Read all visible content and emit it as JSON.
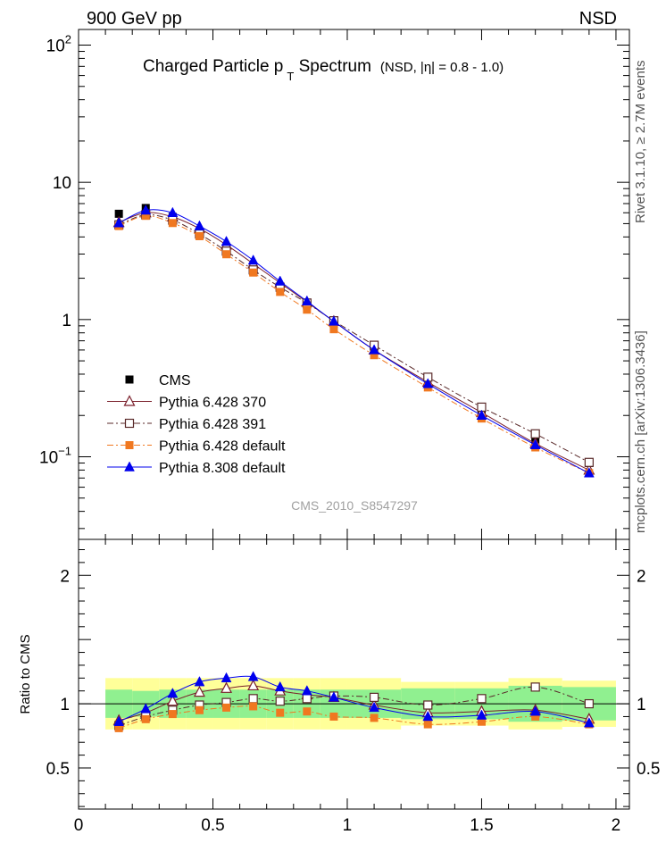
{
  "header": {
    "left": "900 GeV pp",
    "right": "NSD"
  },
  "side_labels": {
    "rivet": "Rivet 3.1.10, ≥ 2.7M events",
    "mcplots": "mcplots.cern.ch [arXiv:1306.3436]"
  },
  "chart_data": [
    {
      "type": "scatter",
      "panel": "main",
      "title_main": "Charged Particle p",
      "title_sub": "T",
      "title_rest": " Spectrum",
      "title_note": "(NSD, |η| = 0.8 - 1.0)",
      "watermark": "CMS_2010_S8547297",
      "xlim": [
        0,
        2.05
      ],
      "ylim": [
        0.025,
        130
      ],
      "yscale": "log",
      "yticks": [
        {
          "v": 100,
          "base": "10",
          "exp": "2"
        },
        {
          "v": 10,
          "base": "10",
          "exp": ""
        },
        {
          "v": 1,
          "base": "1",
          "exp": ""
        },
        {
          "v": 0.1,
          "base": "10",
          "exp": "−1"
        }
      ],
      "legend_position": "bottom-left",
      "x": [
        0.15,
        0.25,
        0.35,
        0.45,
        0.55,
        0.65,
        0.75,
        0.85,
        0.95,
        1.1,
        1.3,
        1.5,
        1.7,
        1.9
      ],
      "series": [
        {
          "name": "CMS",
          "color": "#000000",
          "marker": "filled-square",
          "line": "none",
          "values": [
            5.9,
            6.5,
            5.6,
            4.2,
            3.1,
            2.25,
            1.7,
            1.27,
            0.93,
            0.62,
            0.38,
            0.22,
            0.13,
            0.09
          ]
        },
        {
          "name": "Pythia 6.428 370",
          "color": "#7a1f2b",
          "marker": "open-triangle",
          "line": "solid",
          "values": [
            5.1,
            6.0,
            5.6,
            4.6,
            3.5,
            2.55,
            1.85,
            1.34,
            0.97,
            0.6,
            0.35,
            0.21,
            0.125,
            0.08
          ]
        },
        {
          "name": "Pythia 6.428 391",
          "color": "#5a2a2a",
          "marker": "open-square",
          "line": "dashdot",
          "values": [
            4.9,
            5.8,
            5.3,
            4.2,
            3.15,
            2.3,
            1.72,
            1.32,
            0.98,
            0.65,
            0.38,
            0.23,
            0.147,
            0.091
          ]
        },
        {
          "name": "Pythia 6.428 default",
          "color": "#f07820",
          "marker": "filled-square",
          "line": "dashdot",
          "values": [
            4.8,
            5.7,
            5.05,
            4.05,
            2.99,
            2.2,
            1.59,
            1.18,
            0.85,
            0.55,
            0.32,
            0.19,
            0.117,
            0.076
          ]
        },
        {
          "name": "Pythia 8.308 default",
          "color": "#0000ee",
          "marker": "filled-triangle",
          "line": "solid",
          "values": [
            5.05,
            6.25,
            6.0,
            4.8,
            3.7,
            2.7,
            1.9,
            1.36,
            0.97,
            0.6,
            0.34,
            0.2,
            0.122,
            0.076
          ]
        }
      ]
    },
    {
      "type": "scatter",
      "panel": "ratio",
      "ylabel": "Ratio to CMS",
      "xlim": [
        0,
        2.05
      ],
      "ylim": [
        0.18,
        2.28
      ],
      "yticks": [
        {
          "v": 0.5,
          "label": "0.5"
        },
        {
          "v": 1,
          "label": "1"
        },
        {
          "v": 2,
          "label": "2"
        }
      ],
      "xticks": [
        {
          "v": 0,
          "label": "0"
        },
        {
          "v": 0.5,
          "label": "0.5"
        },
        {
          "v": 1,
          "label": "1"
        },
        {
          "v": 1.5,
          "label": "1.5"
        },
        {
          "v": 2,
          "label": "2"
        }
      ],
      "bands": {
        "x_edges": [
          0.1,
          0.2,
          0.3,
          0.4,
          0.5,
          0.6,
          0.7,
          0.8,
          0.9,
          1.0,
          1.2,
          1.4,
          1.6,
          1.8,
          2.0
        ],
        "stat_color": "#90f090",
        "syst_color": "#ffff99",
        "outer_lo": [
          0.8,
          0.8,
          0.8,
          0.8,
          0.8,
          0.8,
          0.8,
          0.8,
          0.8,
          0.8,
          0.83,
          0.83,
          0.8,
          0.82
        ],
        "outer_hi": [
          1.2,
          1.2,
          1.2,
          1.2,
          1.2,
          1.2,
          1.2,
          1.2,
          1.2,
          1.2,
          1.17,
          1.17,
          1.2,
          1.18
        ],
        "inner_lo": [
          0.89,
          0.9,
          0.89,
          0.89,
          0.89,
          0.89,
          0.89,
          0.89,
          0.89,
          0.89,
          0.88,
          0.88,
          0.86,
          0.87
        ],
        "inner_hi": [
          1.11,
          1.1,
          1.11,
          1.11,
          1.11,
          1.11,
          1.11,
          1.11,
          1.11,
          1.11,
          1.12,
          1.12,
          1.14,
          1.13
        ]
      },
      "x": [
        0.15,
        0.25,
        0.35,
        0.45,
        0.55,
        0.65,
        0.75,
        0.85,
        0.95,
        1.1,
        1.3,
        1.5,
        1.7,
        1.9
      ],
      "series": [
        {
          "name": "Pythia 6.428 370",
          "color": "#7a1f2b",
          "marker": "open-triangle",
          "line": "solid",
          "values": [
            0.87,
            0.93,
            1.02,
            1.09,
            1.12,
            1.14,
            1.1,
            1.07,
            1.05,
            0.99,
            0.93,
            0.94,
            0.95,
            0.88
          ]
        },
        {
          "name": "Pythia 6.428 391",
          "color": "#5a2a2a",
          "marker": "open-square",
          "line": "dashdot",
          "values": [
            0.83,
            0.9,
            0.95,
            0.99,
            1.01,
            1.04,
            1.02,
            1.04,
            1.06,
            1.05,
            0.99,
            1.04,
            1.13,
            1.0
          ]
        },
        {
          "name": "Pythia 6.428 default",
          "color": "#f07820",
          "marker": "filled-square",
          "line": "dashdot",
          "values": [
            0.81,
            0.88,
            0.92,
            0.95,
            0.97,
            0.98,
            0.93,
            0.94,
            0.9,
            0.89,
            0.84,
            0.86,
            0.9,
            0.84
          ]
        },
        {
          "name": "Pythia 8.308 default",
          "color": "#0000ee",
          "marker": "filled-triangle",
          "line": "solid",
          "values": [
            0.86,
            0.96,
            1.08,
            1.17,
            1.2,
            1.21,
            1.13,
            1.1,
            1.05,
            0.97,
            0.9,
            0.91,
            0.94,
            0.85
          ]
        }
      ]
    }
  ]
}
